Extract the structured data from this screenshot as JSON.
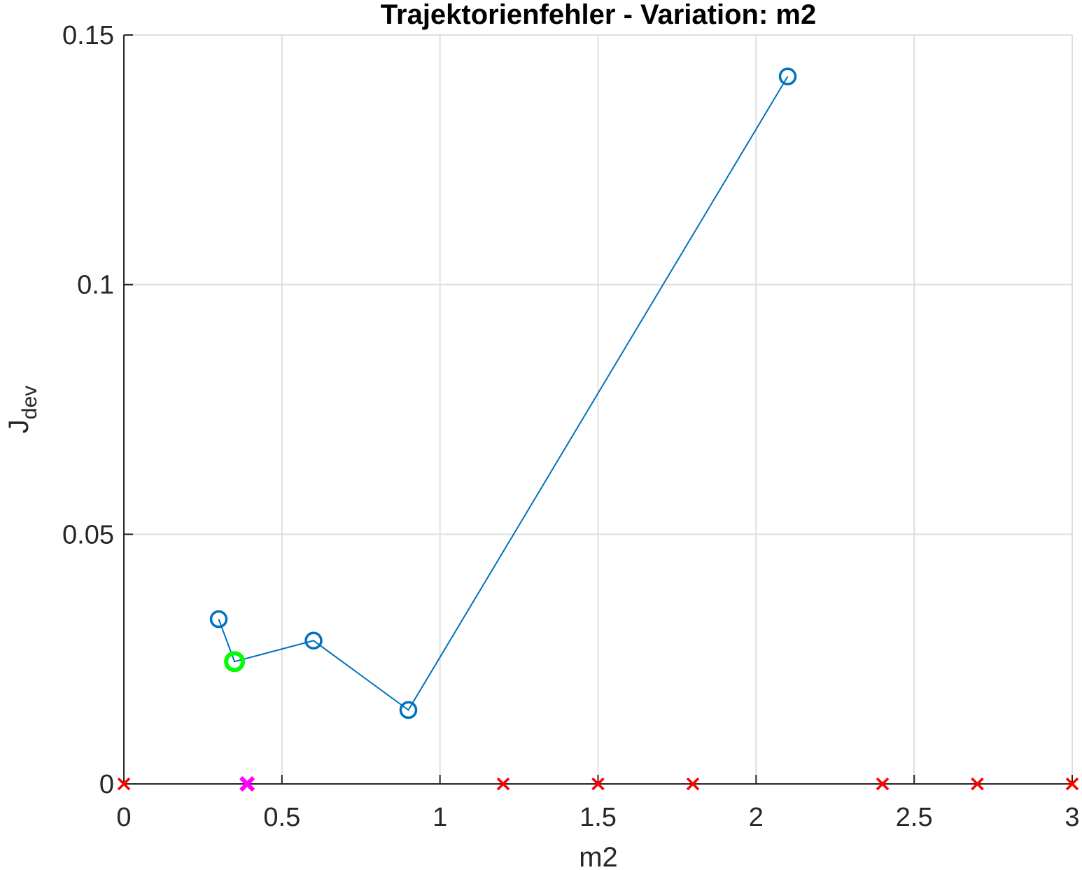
{
  "chart_data": {
    "type": "line",
    "title": "Trajektorienfehler - Variation: m2",
    "xlabel": "m2",
    "ylabel_main": "J",
    "ylabel_sub": "dev",
    "xlim": [
      0,
      3
    ],
    "ylim": [
      0,
      0.15
    ],
    "xticks": [
      0,
      0.5,
      1,
      1.5,
      2,
      2.5,
      3
    ],
    "xtick_labels": [
      "0",
      "0.5",
      "1",
      "1.5",
      "2",
      "2.5",
      "3"
    ],
    "yticks": [
      0,
      0.05,
      0.1,
      0.15
    ],
    "ytick_labels": [
      "0",
      "0.05",
      "0.1",
      "0.15"
    ],
    "grid": true,
    "series": [
      {
        "marker": "circle",
        "color": "#0072BD",
        "points": [
          {
            "x": 0.3,
            "y": 0.033
          },
          {
            "x": 0.35,
            "y": 0.0245
          },
          {
            "x": 0.6,
            "y": 0.0287
          },
          {
            "x": 0.9,
            "y": 0.0148
          },
          {
            "x": 2.1,
            "y": 0.1417
          }
        ]
      }
    ],
    "highlight_point": {
      "x": 0.35,
      "y": 0.0245,
      "marker": "circle",
      "color": "#00FF00"
    },
    "failed_points": {
      "marker": "x",
      "color": "#FF0000",
      "x": [
        0,
        1.2,
        1.5,
        1.8,
        2.4,
        2.7,
        3
      ],
      "y": [
        0,
        0,
        0,
        0,
        0,
        0,
        0
      ]
    },
    "reference_point": {
      "x": 0.39,
      "y": 0,
      "marker": "x",
      "color": "#FF00FF"
    }
  }
}
